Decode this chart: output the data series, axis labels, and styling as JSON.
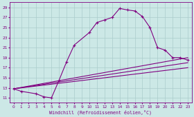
{
  "xlabel": "Windchill (Refroidissement éolien,°C)",
  "bg_color": "#cce8e6",
  "line_color": "#800080",
  "grid_color": "#aacccc",
  "xlim": [
    -0.5,
    23.5
  ],
  "ylim": [
    10.0,
    30.0
  ],
  "yticks": [
    11,
    13,
    15,
    17,
    19,
    21,
    23,
    25,
    27,
    29
  ],
  "xticks": [
    0,
    1,
    2,
    3,
    4,
    5,
    6,
    7,
    8,
    9,
    10,
    11,
    12,
    13,
    14,
    15,
    16,
    17,
    18,
    19,
    20,
    21,
    22,
    23
  ],
  "series1_x": [
    0,
    1,
    3,
    4,
    5,
    6,
    7,
    8,
    10,
    11,
    12,
    13,
    14,
    15,
    16,
    17,
    18,
    19,
    20,
    21,
    22,
    23
  ],
  "series1_y": [
    12.8,
    12.3,
    11.8,
    11.2,
    11.0,
    14.5,
    18.2,
    21.5,
    24.0,
    26.0,
    26.5,
    27.0,
    28.8,
    28.5,
    28.3,
    27.2,
    25.0,
    21.0,
    20.5,
    19.0,
    19.0,
    18.5
  ],
  "series2_x": [
    0,
    23
  ],
  "series2_y": [
    12.8,
    19.0
  ],
  "series3_x": [
    0,
    23
  ],
  "series3_y": [
    12.8,
    18.0
  ],
  "series4_x": [
    0,
    23
  ],
  "series4_y": [
    12.8,
    17.0
  ],
  "marker_x": [
    0,
    1,
    3,
    4,
    5,
    6,
    7,
    8,
    10,
    11,
    12,
    13,
    14,
    15,
    16,
    17,
    18,
    19,
    20,
    21,
    22,
    23
  ],
  "marker_y": [
    12.8,
    12.3,
    11.8,
    11.2,
    11.0,
    14.5,
    18.2,
    21.5,
    24.0,
    26.0,
    26.5,
    27.0,
    28.8,
    28.5,
    28.3,
    27.2,
    25.0,
    21.0,
    20.5,
    19.0,
    19.0,
    18.5
  ]
}
